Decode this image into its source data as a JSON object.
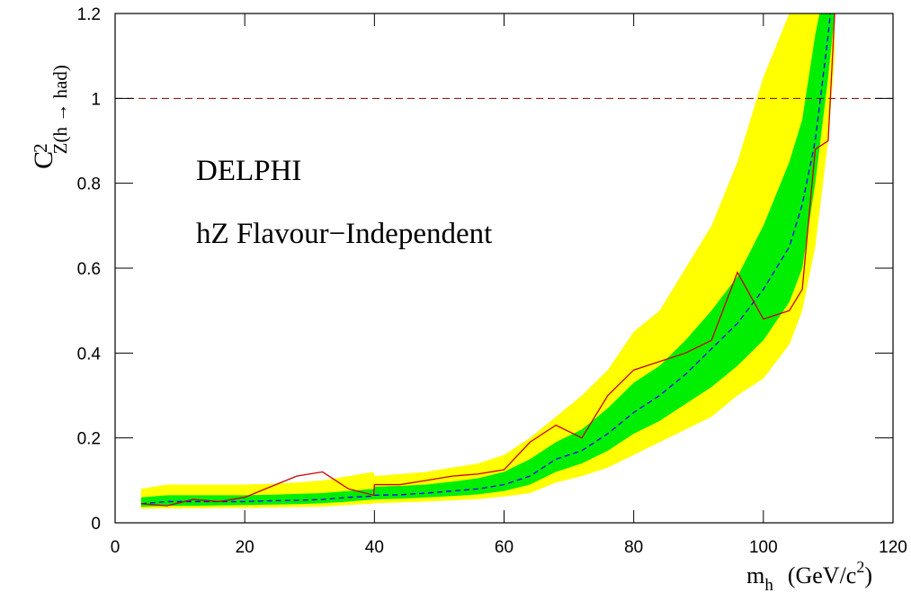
{
  "chart_data": {
    "type": "limit-bands",
    "annotations": [
      "DELPHI",
      "hZ Flavour−Independent"
    ],
    "y_label": {
      "main": "C",
      "sup": "2",
      "sub": "Z(h → had)"
    },
    "x_label": {
      "main": "m",
      "sub": "h",
      "unit": "(GeV/c",
      "unit_sup": "2",
      "unit_end": ")"
    },
    "xlim": [
      0,
      120
    ],
    "xticks": [
      0,
      20,
      40,
      60,
      80,
      100,
      120
    ],
    "ylim": [
      0,
      1.2
    ],
    "yticks": [
      0,
      0.2,
      0.4,
      0.6,
      0.8,
      1,
      1.2
    ],
    "hline": {
      "value": 1,
      "color": "#800000"
    },
    "x": [
      4,
      8,
      12,
      16,
      20,
      24,
      28,
      32,
      36,
      39.9,
      40,
      44,
      48,
      52,
      56,
      60,
      64,
      68,
      72,
      76,
      80,
      84,
      88,
      92,
      96,
      100,
      104,
      106,
      108,
      110,
      111
    ],
    "band_2sigma": {
      "color": "#ffff00",
      "low": [
        0.033,
        0.034,
        0.034,
        0.035,
        0.035,
        0.036,
        0.037,
        0.038,
        0.042,
        0.045,
        0.046,
        0.048,
        0.05,
        0.053,
        0.056,
        0.062,
        0.07,
        0.095,
        0.11,
        0.13,
        0.16,
        0.19,
        0.22,
        0.25,
        0.3,
        0.34,
        0.42,
        0.5,
        0.65,
        0.9,
        1.1
      ],
      "high": [
        0.08,
        0.09,
        0.09,
        0.09,
        0.09,
        0.092,
        0.095,
        0.1,
        0.11,
        0.12,
        0.11,
        0.115,
        0.12,
        0.13,
        0.14,
        0.16,
        0.2,
        0.25,
        0.3,
        0.36,
        0.45,
        0.5,
        0.6,
        0.7,
        0.85,
        1.05,
        1.2,
        1.25,
        1.3,
        1.4,
        1.5
      ]
    },
    "band_1sigma": {
      "color": "#00ee00",
      "low": [
        0.038,
        0.04,
        0.04,
        0.041,
        0.042,
        0.043,
        0.044,
        0.046,
        0.05,
        0.055,
        0.055,
        0.057,
        0.06,
        0.063,
        0.067,
        0.075,
        0.09,
        0.12,
        0.14,
        0.17,
        0.21,
        0.24,
        0.28,
        0.32,
        0.37,
        0.43,
        0.52,
        0.6,
        0.8,
        1.05,
        1.2
      ],
      "high": [
        0.06,
        0.065,
        0.065,
        0.065,
        0.065,
        0.066,
        0.068,
        0.07,
        0.075,
        0.08,
        0.085,
        0.087,
        0.09,
        0.097,
        0.105,
        0.12,
        0.15,
        0.19,
        0.22,
        0.27,
        0.33,
        0.37,
        0.43,
        0.5,
        0.58,
        0.7,
        0.85,
        0.95,
        1.15,
        1.3,
        1.4
      ]
    },
    "series": [
      {
        "color": "#0000ff",
        "dashed": true,
        "values": [
          0.045,
          0.05,
          0.05,
          0.05,
          0.05,
          0.052,
          0.053,
          0.055,
          0.06,
          0.063,
          0.065,
          0.066,
          0.07,
          0.075,
          0.08,
          0.09,
          0.11,
          0.15,
          0.17,
          0.21,
          0.26,
          0.3,
          0.35,
          0.41,
          0.47,
          0.55,
          0.65,
          0.75,
          0.9,
          1.15,
          1.3
        ]
      },
      {
        "color": "#cc0000",
        "dashed": false,
        "values": [
          0.045,
          0.04,
          0.055,
          0.05,
          0.06,
          0.085,
          0.11,
          0.12,
          0.08,
          0.065,
          0.09,
          0.09,
          0.1,
          0.11,
          0.115,
          0.125,
          0.19,
          0.23,
          0.2,
          0.3,
          0.36,
          0.38,
          0.4,
          0.43,
          0.59,
          0.48,
          0.5,
          0.55,
          0.88,
          0.9,
          1.2
        ]
      }
    ]
  }
}
